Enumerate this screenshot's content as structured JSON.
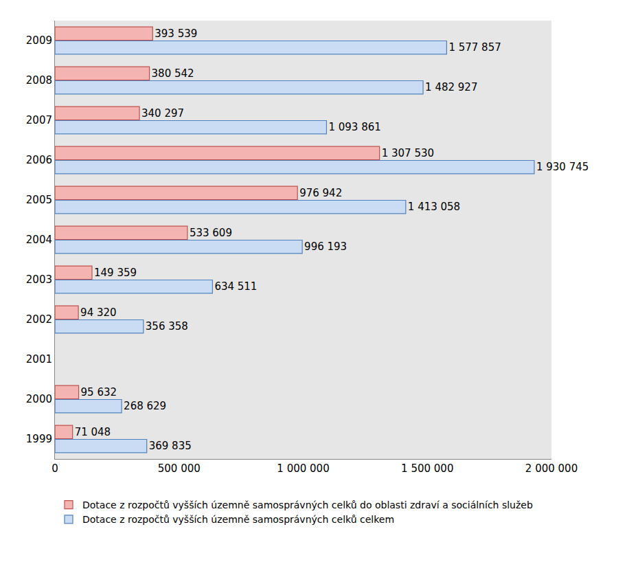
{
  "chart_data": {
    "type": "bar",
    "orientation": "horizontal",
    "categories": [
      "1999",
      "2000",
      "2001",
      "2002",
      "2003",
      "2004",
      "2005",
      "2006",
      "2007",
      "2008",
      "2009"
    ],
    "series": [
      {
        "name": "Dotace z rozpočtů vyšších územně samosprávných celků do oblasti zdraví a sociálních služeb",
        "color": "#f4b4b2",
        "values": [
          71048,
          95632,
          null,
          94320,
          149359,
          533609,
          976942,
          1307530,
          340297,
          380542,
          393539
        ],
        "value_labels": [
          "71 048",
          "95 632",
          null,
          "94 320",
          "149 359",
          "533 609",
          "976 942",
          "1 307 530",
          "340 297",
          "380 542",
          "393 539"
        ]
      },
      {
        "name": "Dotace z rozpočtů vyšších územně samosprávných celků celkem",
        "color": "#c9dcf3",
        "values": [
          369835,
          268629,
          null,
          356358,
          634511,
          996193,
          1413058,
          1930745,
          1093861,
          1482927,
          1577857
        ],
        "value_labels": [
          "369 835",
          "268 629",
          null,
          "356 358",
          "634 511",
          "996 193",
          "1 413 058",
          "1 930 745",
          "1 093 861",
          "1 482 927",
          "1 577 857"
        ]
      }
    ],
    "xlim": [
      0,
      2000000
    ],
    "xticks": [
      0,
      {
        "value": 500000,
        "label": "500 000"
      },
      {
        "value": 1000000,
        "label": "1 000 000"
      },
      {
        "value": 1500000,
        "label": "1 500 000"
      },
      {
        "value": 2000000,
        "label": "2 000 000"
      }
    ],
    "grid": false,
    "data_labels": true,
    "legend": "bottom"
  }
}
